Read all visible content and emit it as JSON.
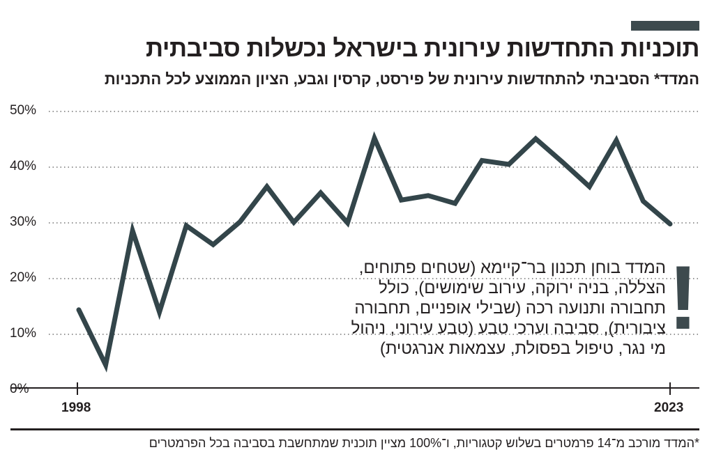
{
  "header": {
    "title": "תוכניות התחדשות עירונית בישראל נכשלות סביבתית",
    "subtitle": "המדד* הסביבתי להתחדשות עירונית של פירסט, קרסין וגבע, הציון הממוצע לכל התכניות"
  },
  "annotation": {
    "mark": "!",
    "lines": [
      "המדד בוחן תכנון בר־קיימא (שטחים פתוחים,",
      "הצללה, בניה ירוקה, עירוב שימושים), כולל",
      "תחבורה ותנועה רכה (שבילי אופניים, תחבורה",
      "ציבורית), סביבה וערכי טבע (טבע עירוני, ניהול",
      "מי נגר, טיפול בפסולת, עצמאות אנרגטית)"
    ]
  },
  "footnote": "*המדד מורכב מ־14 פרמטרים בשלוש קטגוריות, ו־100% מציין תוכנית שמתחשבת בסביבה בכל הפרמטרים",
  "colors": {
    "line": "#33454a",
    "text": "#231f20",
    "accent_bar": "#3d4a4e"
  },
  "chart_data": {
    "type": "line",
    "title": "תוכניות התחדשות עירונית בישראל נכשלות סביבתית",
    "x_tick_labels": [
      "1998",
      "2023"
    ],
    "y_tick_labels": [
      "0%",
      "10%",
      "20%",
      "30%",
      "40%",
      "50%"
    ],
    "ylim": [
      0,
      50
    ],
    "grid": "horizontal dotted",
    "series": [
      {
        "values": [
          14.4,
          4.5,
          28.6,
          14.0,
          29.5,
          26.1,
          30.2,
          36.5,
          30.1,
          35.4,
          30.0,
          45.2,
          34.1,
          34.9,
          33.5,
          41.2,
          40.5,
          45.1,
          40.9,
          36.5,
          44.8,
          33.9,
          29.8
        ]
      }
    ]
  }
}
